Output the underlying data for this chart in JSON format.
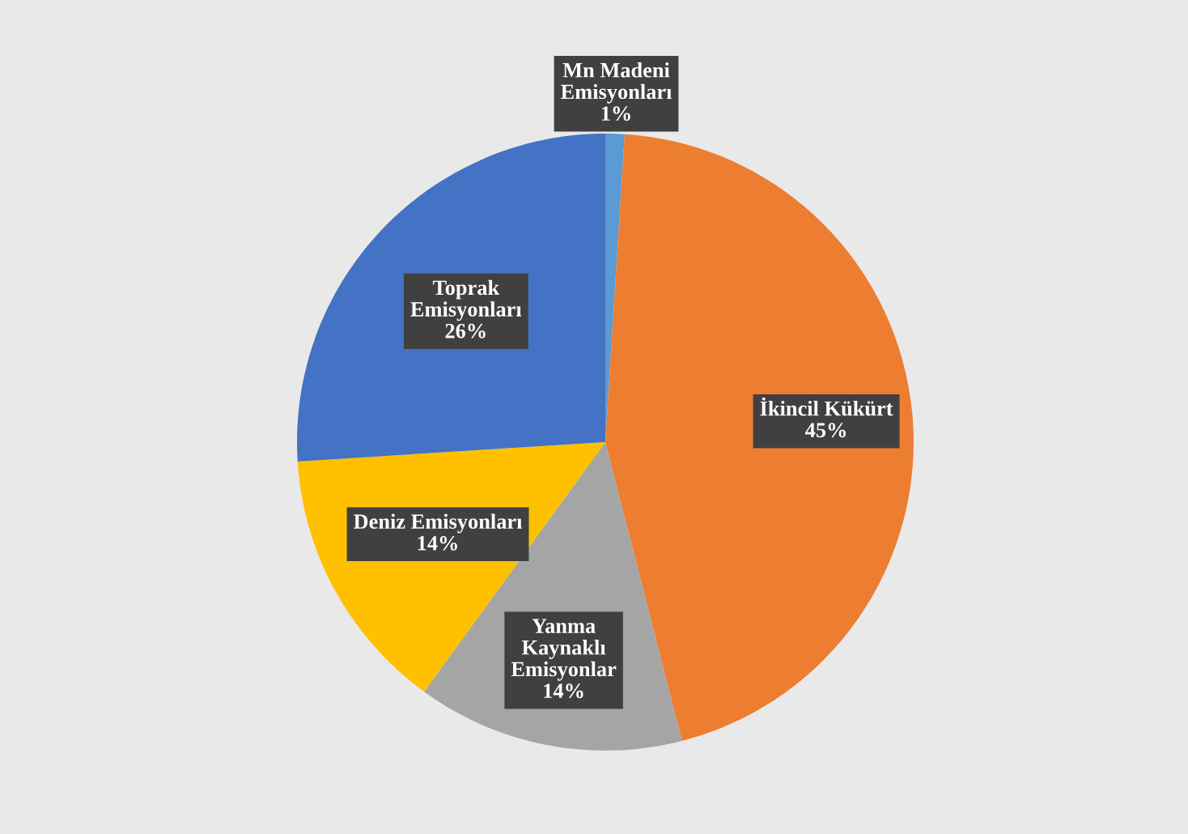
{
  "chart_data": {
    "type": "pie",
    "categories": [
      "Mn Madeni\nEmisyonları",
      "İkincil Kükürt",
      "Yanma\nKaynaklı\nEmisyonlar",
      "Deniz Emisyonları",
      "Toprak\nEmisyonları"
    ],
    "values": [
      1,
      45,
      14,
      14,
      26
    ],
    "value_labels": [
      "1%",
      "45%",
      "14%",
      "14%",
      "26%"
    ],
    "colors": [
      "#5b9bd5",
      "#ed7d31",
      "#a5a5a5",
      "#ffc000",
      "#4472c4"
    ],
    "legend": false
  }
}
